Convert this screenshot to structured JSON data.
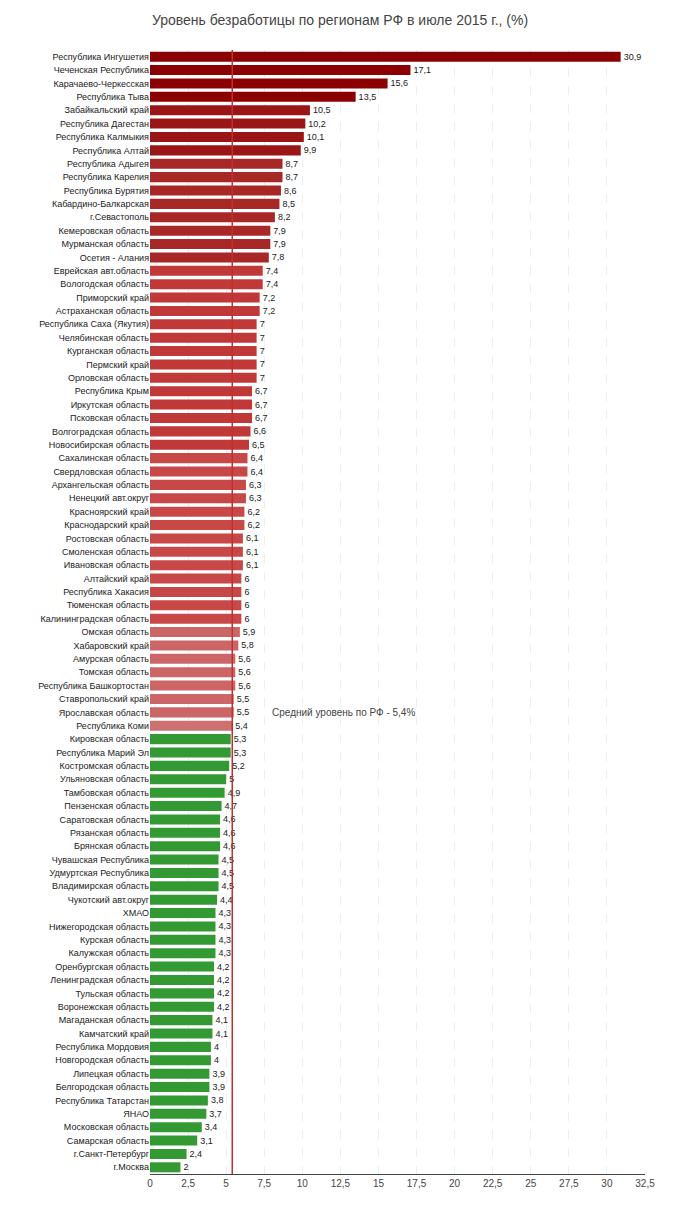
{
  "chart_data": {
    "type": "bar",
    "orientation": "horizontal",
    "title": "Уровень безработицы по регионам РФ в июле 2015 г., (%)",
    "categories": [
      "Республика Ингушетия",
      "Чеченская Республика",
      "Карачаево-Черкесская",
      "Республика Тыва",
      "Забайкальский край",
      "Республика Дагестан",
      "Республика Калмыкия",
      "Республика Алтай",
      "Республика Адыгея",
      "Республика Карелия",
      "Республика Бурятия",
      "Кабардино-Балкарская",
      "г.Севастополь",
      "Кемеровская область",
      "Мурманская область",
      "Осетия - Алания",
      "Еврейская авт.область",
      "Вологодская область",
      "Приморский край",
      "Астраханская область",
      "Республика Саха (Якутия)",
      "Челябинская область",
      "Курганская область",
      "Пермский край",
      "Орловская область",
      "Республика Крым",
      "Иркутская область",
      "Псковская область",
      "Волгоградская область",
      "Новосибирская область",
      "Сахалинская область",
      "Свердловская область",
      "Архангельская область",
      "Ненецкий авт.округ",
      "Красноярский край",
      "Краснодарский край",
      "Ростовская область",
      "Смоленская область",
      "Ивановская область",
      "Алтайский край",
      "Республика Хакасия",
      "Тюменская область",
      "Калининградская область",
      "Омская область",
      "Хабаровский край",
      "Амурская область",
      "Томская область",
      "Республика Башкортостан",
      "Ставропольский край",
      "Ярославская область",
      "Республика Коми",
      "Кировская область",
      "Республика Марий Эл",
      "Костромская область",
      "Ульяновская область",
      "Тамбовская область",
      "Пензенская область",
      "Саратовская область",
      "Рязанская область",
      "Брянская область",
      "Чувашская Республика",
      "Удмуртская Республика",
      "Владимирская область",
      "Чукотский авт.округ",
      "ХМАО",
      "Нижегородская область",
      "Курская область",
      "Калужская область",
      "Оренбургская область",
      "Ленинградская область",
      "Тульская область",
      "Воронежская область",
      "Магаданская область",
      "Камчатский край",
      "Республика Мордовия",
      "Новгородская область",
      "Липецкая область",
      "Белгородская область",
      "Республика Татарстан",
      "ЯНАО",
      "Московская область",
      "Самарская область",
      "г.Санкт-Петербург",
      "г.Москва"
    ],
    "values": [
      30.9,
      17.1,
      15.6,
      13.5,
      10.5,
      10.2,
      10.1,
      9.9,
      8.7,
      8.7,
      8.6,
      8.5,
      8.2,
      7.9,
      7.9,
      7.8,
      7.4,
      7.4,
      7.2,
      7.2,
      7.0,
      7.0,
      7.0,
      7.0,
      7.0,
      6.7,
      6.7,
      6.7,
      6.6,
      6.5,
      6.4,
      6.4,
      6.3,
      6.3,
      6.2,
      6.2,
      6.1,
      6.1,
      6.1,
      6.0,
      6.0,
      6.0,
      6.0,
      5.9,
      5.8,
      5.6,
      5.6,
      5.6,
      5.5,
      5.5,
      5.4,
      5.3,
      5.3,
      5.2,
      5.0,
      4.9,
      4.7,
      4.6,
      4.6,
      4.6,
      4.5,
      4.5,
      4.5,
      4.4,
      4.3,
      4.3,
      4.3,
      4.3,
      4.2,
      4.2,
      4.2,
      4.2,
      4.1,
      4.1,
      4.0,
      4.0,
      3.9,
      3.9,
      3.8,
      3.7,
      3.4,
      3.1,
      2.4,
      2.0
    ],
    "value_labels": [
      "30,9",
      "17,1",
      "15,6",
      "13,5",
      "10,5",
      "10,2",
      "10,1",
      "9,9",
      "8,7",
      "8,7",
      "8,6",
      "8,5",
      "8,2",
      "7,9",
      "7,9",
      "7,8",
      "7,4",
      "7,4",
      "7,2",
      "7,2",
      "7",
      "7",
      "7",
      "7",
      "7",
      "6,7",
      "6,7",
      "6,7",
      "6,6",
      "6,5",
      "6,4",
      "6,4",
      "6,3",
      "6,3",
      "6,2",
      "6,2",
      "6,1",
      "6,1",
      "6,1",
      "6",
      "6",
      "6",
      "6",
      "5,9",
      "5,8",
      "5,6",
      "5,6",
      "5,6",
      "5,5",
      "5,5",
      "5,4",
      "5,3",
      "5,3",
      "5,2",
      "5",
      "4,9",
      "4,7",
      "4,6",
      "4,6",
      "4,6",
      "4,5",
      "4,5",
      "4,5",
      "4,4",
      "4,3",
      "4,3",
      "4,3",
      "4,3",
      "4,2",
      "4,2",
      "4,2",
      "4,2",
      "4,1",
      "4,1",
      "4",
      "4",
      "3,9",
      "3,9",
      "3,8",
      "3,7",
      "3,4",
      "3,1",
      "2,4",
      "2"
    ],
    "data_labels": true,
    "colors": [
      "#8B0000",
      "#8B0000",
      "#8B0000",
      "#8B0000",
      "#9A1515",
      "#9A1515",
      "#9A1515",
      "#9A1515",
      "#A82828",
      "#A82828",
      "#A82828",
      "#A82828",
      "#A82828",
      "#A82828",
      "#A82828",
      "#A82828",
      "#C03838",
      "#C03838",
      "#C03838",
      "#C03838",
      "#C03838",
      "#C03838",
      "#C03838",
      "#C03838",
      "#C03838",
      "#C03838",
      "#C03838",
      "#C03838",
      "#C03838",
      "#C03838",
      "#C84848",
      "#C84848",
      "#C84848",
      "#C84848",
      "#C84848",
      "#C84848",
      "#C84848",
      "#C84848",
      "#C84848",
      "#C84848",
      "#C84848",
      "#C84848",
      "#C84848",
      "#CC6666",
      "#CC6666",
      "#CC6666",
      "#CC6666",
      "#CC6666",
      "#CC6666",
      "#CC6666",
      "#CC7070",
      "#339933",
      "#339933",
      "#339933",
      "#339933",
      "#339933",
      "#339933",
      "#339933",
      "#339933",
      "#339933",
      "#339933",
      "#339933",
      "#339933",
      "#339933",
      "#339933",
      "#339933",
      "#339933",
      "#339933",
      "#339933",
      "#339933",
      "#339933",
      "#339933",
      "#339933",
      "#339933",
      "#339933",
      "#339933",
      "#339933",
      "#339933",
      "#339933",
      "#339933",
      "#339933",
      "#339933",
      "#339933",
      "#339933"
    ],
    "average_line": {
      "value": 5.4,
      "label": "Средний уровень по РФ - 5,4%",
      "color": "#C03030"
    },
    "xlim": [
      0,
      32.5
    ],
    "xticks": [
      0,
      {
        "value": 2.5,
        "label": "2,5"
      },
      5,
      {
        "value": 7.5,
        "label": "7,5"
      },
      10,
      {
        "value": 12.5,
        "label": "12,5"
      },
      15,
      {
        "value": 17.5,
        "label": "17,5"
      },
      20,
      {
        "value": 22.5,
        "label": "22,5"
      },
      25,
      {
        "value": 27.5,
        "label": "27,5"
      },
      30,
      {
        "value": 32.5,
        "label": "32,5"
      }
    ],
    "grid": true
  }
}
